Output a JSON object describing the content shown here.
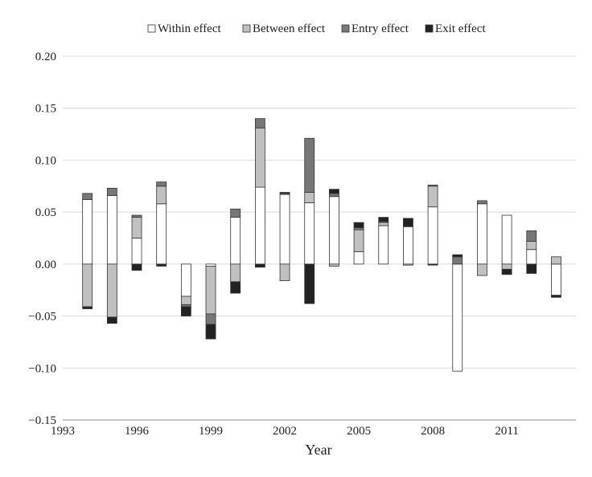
{
  "chart_data": {
    "type": "bar",
    "stacked": true,
    "xlabel": "Year",
    "ylabel": "",
    "ylim": [
      -0.15,
      0.2
    ],
    "yticks": [
      "0.20",
      "0.15",
      "0.10",
      "0.05",
      "0.00",
      "−0.05",
      "−0.10",
      "−0.15"
    ],
    "ytick_values": [
      0.2,
      0.15,
      0.1,
      0.05,
      0.0,
      -0.05,
      -0.1,
      -0.15
    ],
    "xticks": [
      "1993",
      "1996",
      "1999",
      "2002",
      "2005",
      "2008",
      "2011"
    ],
    "xtick_values": [
      1993,
      1996,
      1999,
      2002,
      2005,
      2008,
      2011
    ],
    "xlim": [
      1993,
      2013.8
    ],
    "grid": "horizontal",
    "legend_position": "top",
    "categories": [
      1994,
      1995,
      1996,
      1997,
      1998,
      1999,
      2000,
      2001,
      2002,
      2003,
      2004,
      2005,
      2006,
      2007,
      2008,
      2009,
      2010,
      2011,
      2012,
      2013
    ],
    "series": [
      {
        "name": "Within effect",
        "color": "#ffffff",
        "values": [
          0.062,
          0.066,
          0.025,
          0.058,
          -0.031,
          -0.002,
          0.045,
          0.074,
          0.067,
          0.059,
          0.065,
          0.012,
          0.037,
          0.036,
          0.055,
          -0.103,
          0.058,
          0.047,
          0.014,
          -0.03
        ]
      },
      {
        "name": "Between effect",
        "color": "#c0c0c0",
        "values": [
          -0.041,
          -0.051,
          0.02,
          0.017,
          -0.008,
          -0.046,
          -0.017,
          0.057,
          -0.016,
          0.01,
          -0.002,
          0.021,
          0.003,
          -0.001,
          0.02,
          0.0,
          -0.011,
          -0.005,
          0.008,
          0.007
        ]
      },
      {
        "name": "Entry effect",
        "color": "#777777",
        "values": [
          0.006,
          0.007,
          0.002,
          0.004,
          -0.002,
          -0.01,
          0.008,
          0.009,
          0.001,
          0.052,
          0.003,
          0.002,
          0.001,
          0.0,
          0.001,
          0.007,
          0.003,
          0.0,
          0.01,
          0.0
        ]
      },
      {
        "name": "Exit effect",
        "color": "#222222",
        "values": [
          -0.002,
          -0.006,
          -0.006,
          -0.002,
          -0.009,
          -0.014,
          -0.011,
          -0.003,
          0.001,
          -0.038,
          0.004,
          0.005,
          0.004,
          0.008,
          -0.001,
          0.002,
          0.0,
          -0.005,
          -0.009,
          -0.002
        ]
      }
    ]
  }
}
